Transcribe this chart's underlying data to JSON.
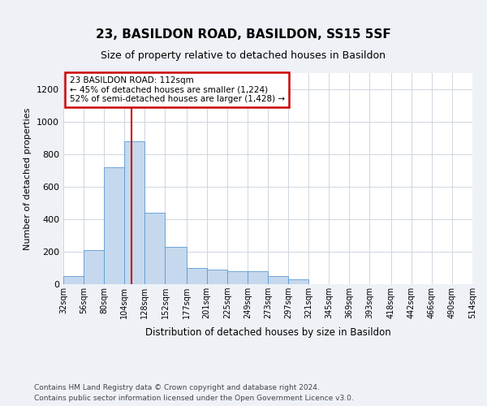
{
  "title": "23, BASILDON ROAD, BASILDON, SS15 5SF",
  "subtitle": "Size of property relative to detached houses in Basildon",
  "xlabel": "Distribution of detached houses by size in Basildon",
  "ylabel": "Number of detached properties",
  "bar_color": "#c5d8ed",
  "bar_edge_color": "#5b9bd5",
  "background_color": "#eef2f7",
  "plot_bg_color": "#ffffff",
  "grid_color": "#c8d0da",
  "vline_x": 112,
  "vline_color": "#cc0000",
  "annotation_box_edgecolor": "#cc0000",
  "annotation_lines": [
    "23 BASILDON ROAD: 112sqm",
    "← 45% of detached houses are smaller (1,224)",
    "52% of semi-detached houses are larger (1,428) →"
  ],
  "bins": [
    32,
    56,
    80,
    104,
    128,
    152,
    177,
    201,
    225,
    249,
    273,
    297,
    321,
    345,
    369,
    393,
    418,
    442,
    466,
    490,
    514
  ],
  "counts": [
    48,
    208,
    718,
    878,
    438,
    232,
    100,
    88,
    78,
    78,
    48,
    28,
    0,
    0,
    0,
    0,
    0,
    0,
    0,
    0
  ],
  "ylim": [
    0,
    1300
  ],
  "yticks": [
    0,
    200,
    400,
    600,
    800,
    1000,
    1200
  ],
  "footer_line1": "Contains HM Land Registry data © Crown copyright and database right 2024.",
  "footer_line2": "Contains public sector information licensed under the Open Government Licence v3.0."
}
